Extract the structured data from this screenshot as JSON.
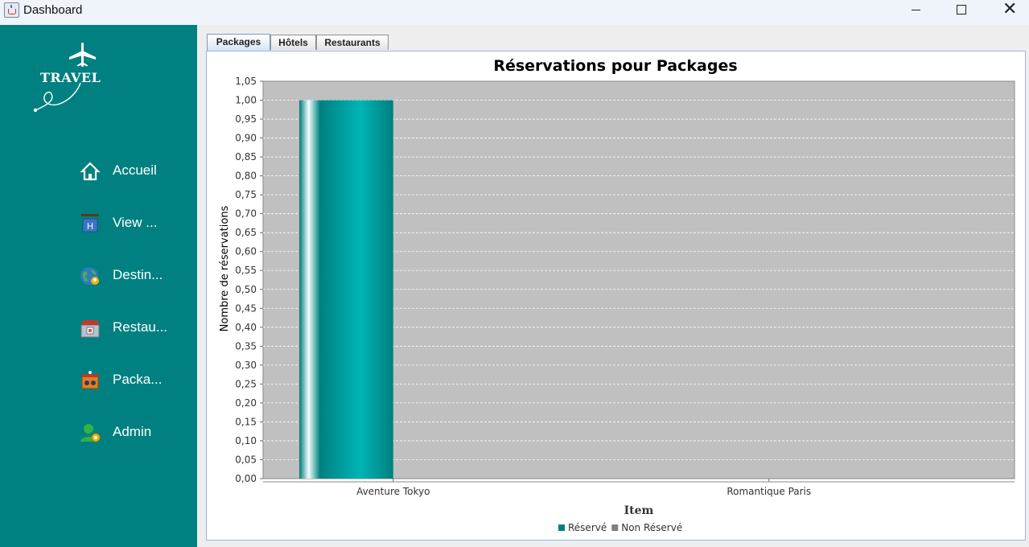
{
  "window": {
    "title": "Dashboard"
  },
  "sidebar": {
    "logo_text": "TRAVEL",
    "items": [
      {
        "label": "Accueil",
        "icon": "home-icon"
      },
      {
        "label": "View ...",
        "icon": "hotel-sign-icon"
      },
      {
        "label": "Destin...",
        "icon": "globe-pin-icon"
      },
      {
        "label": "Restau...",
        "icon": "restaurant-icon"
      },
      {
        "label": "Packa...",
        "icon": "package-icon"
      },
      {
        "label": "Admin",
        "icon": "admin-user-icon"
      }
    ]
  },
  "tabs": [
    {
      "label": "Packages",
      "active": true
    },
    {
      "label": "Hôtels",
      "active": false
    },
    {
      "label": "Restaurants",
      "active": false
    }
  ],
  "colors": {
    "sidebar": "#008080",
    "plot_bg": "#c0c0c0",
    "series_reserve": "#008080",
    "series_non_reserve": "#808080"
  },
  "chart_data": {
    "type": "bar",
    "title": "Réservations pour Packages",
    "xlabel": "Item",
    "ylabel": "Nombre de réservations",
    "categories": [
      "Aventure Tokyo",
      "Romantique Paris"
    ],
    "series": [
      {
        "name": "Réservé",
        "values": [
          1,
          0
        ]
      },
      {
        "name": "Non Réservé",
        "values": [
          0,
          0
        ]
      }
    ],
    "ylim": [
      0,
      1.05
    ],
    "yticks": [
      "0,00",
      "0,05",
      "0,10",
      "0,15",
      "0,20",
      "0,25",
      "0,30",
      "0,35",
      "0,40",
      "0,45",
      "0,50",
      "0,55",
      "0,60",
      "0,65",
      "0,70",
      "0,75",
      "0,80",
      "0,85",
      "0,90",
      "0,95",
      "1,00",
      "1,05"
    ],
    "grid": true,
    "legend": "bottom"
  }
}
